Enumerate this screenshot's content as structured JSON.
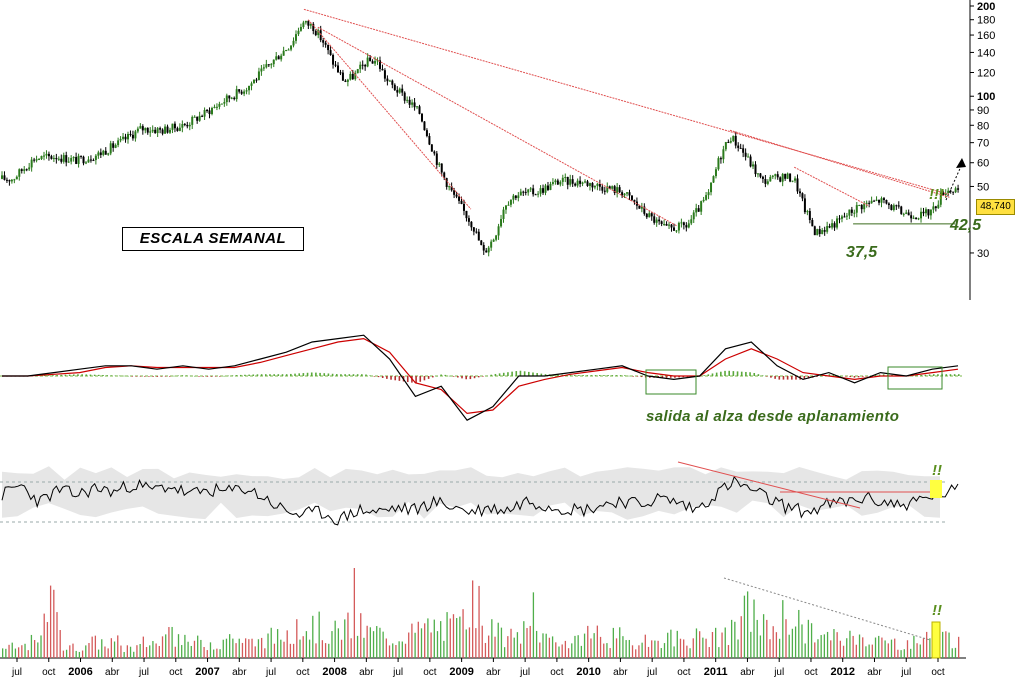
{
  "annotations": {
    "scale_label": "ESCALA SEMANAL",
    "resistance_level": "42,5",
    "support_level": "37,5",
    "macd_comment": "salida al alza desde aplanamiento",
    "alert_price": "!!!",
    "alert_rsi": "!!",
    "alert_volume": "!!"
  },
  "colors": {
    "price_up": "#2a7a1c",
    "price_down": "#000000",
    "macd_line": "#000000",
    "signal_line": "#cc0000",
    "histogram_up": "#5aa83a",
    "histogram_down": "#b33030",
    "trendline": "#e05050",
    "level_text": "#3a6b1c",
    "highlight": "#ffff40"
  },
  "chart_data": [
    {
      "type": "line",
      "panel": "price",
      "title": "",
      "yscale": "log",
      "ylim": [
        24,
        200
      ],
      "y_ticks": [
        "200",
        "180",
        "160",
        "140",
        "120",
        "100",
        "90",
        "80",
        "70",
        "60",
        "50",
        "30"
      ],
      "last_price": "48,740",
      "x_labels": [
        "jul",
        "oct",
        "2006",
        "abr",
        "jul",
        "oct",
        "2007",
        "abr",
        "jul",
        "oct",
        "2008",
        "abr",
        "jul",
        "oct",
        "2009",
        "abr",
        "jul",
        "oct",
        "2010",
        "abr",
        "jul",
        "oct",
        "2011",
        "abr",
        "jul",
        "oct",
        "2012",
        "abr",
        "jul",
        "oct"
      ],
      "series": [
        {
          "x": [
            "2005-07",
            "2005-09",
            "2005-11",
            "2006-01",
            "2006-03",
            "2006-05",
            "2006-07",
            "2006-09",
            "2006-11",
            "2007-01",
            "2007-03",
            "2007-05",
            "2007-07",
            "2007-09",
            "2007-10",
            "2007-11",
            "2007-12",
            "2008-01",
            "2008-02",
            "2008-03",
            "2008-04",
            "2008-05",
            "2008-06",
            "2008-07",
            "2008-08",
            "2008-09",
            "2008-10",
            "2008-11",
            "2008-12",
            "2009-01",
            "2009-02",
            "2009-03",
            "2009-04",
            "2009-05",
            "2009-06",
            "2009-08",
            "2009-10",
            "2009-12",
            "2010-02",
            "2010-04",
            "2010-06",
            "2010-08",
            "2010-10",
            "2010-12",
            "2011-01",
            "2011-02",
            "2011-03",
            "2011-05",
            "2011-07",
            "2011-08",
            "2011-09",
            "2011-10",
            "2011-12",
            "2012-02",
            "2012-04",
            "2012-06",
            "2012-08",
            "2012-09",
            "2012-10"
          ],
          "values": [
            53,
            62,
            63,
            61,
            64,
            70,
            78,
            77,
            80,
            88,
            98,
            108,
            128,
            150,
            176,
            172,
            152,
            128,
            112,
            118,
            130,
            132,
            112,
            104,
            96,
            88,
            70,
            56,
            48,
            42,
            37,
            30,
            34,
            44,
            47,
            48,
            52,
            52,
            50,
            48,
            41,
            36,
            37,
            47,
            62,
            74,
            67,
            52,
            54,
            53,
            42,
            35,
            38,
            43,
            45,
            41,
            40,
            42,
            48.74
          ]
        }
      ]
    },
    {
      "type": "line",
      "panel": "macd",
      "series": [
        {
          "name": "",
          "values": [
            0,
            0,
            0.1,
            0.2,
            0.3,
            0.3,
            0.2,
            0.3,
            0.2,
            0.3,
            0.5,
            0.7,
            1.0,
            1.1,
            1.2,
            0.5,
            -0.6,
            -0.3,
            -1.3,
            -0.9,
            0,
            0,
            0.1,
            0.2,
            0.3,
            0.0,
            -0.1,
            0.0,
            0.8,
            1.0,
            0.3,
            -0.1,
            0.1,
            -0.2,
            0.1,
            0.0,
            0.2,
            0.3
          ]
        },
        {
          "name": "",
          "values": [
            0,
            0,
            0.05,
            0.1,
            0.25,
            0.3,
            0.25,
            0.25,
            0.25,
            0.25,
            0.4,
            0.6,
            0.8,
            1.0,
            1.1,
            0.7,
            -0.2,
            -0.4,
            -1.1,
            -1.0,
            -0.3,
            -0.1,
            0.05,
            0.15,
            0.25,
            0.1,
            0.0,
            0.0,
            0.5,
            0.8,
            0.5,
            0.1,
            0.0,
            -0.1,
            0.0,
            0.0,
            0.1,
            0.2
          ]
        }
      ]
    },
    {
      "type": "line",
      "panel": "oscillator",
      "series": [
        {
          "name": "",
          "values": [
            55,
            65,
            48,
            60,
            55,
            62,
            58,
            66,
            60,
            64,
            55,
            60,
            58,
            62,
            52,
            40,
            35,
            38,
            30,
            40,
            38,
            42,
            40,
            48,
            44,
            38,
            42,
            40,
            50,
            45,
            42,
            40,
            45,
            50,
            45,
            52,
            48,
            40,
            55,
            68,
            60,
            50,
            42,
            38,
            45,
            48,
            52,
            48,
            45,
            50,
            56,
            60
          ]
        }
      ]
    },
    {
      "type": "bar",
      "panel": "volume",
      "series": [
        {
          "name": "",
          "values": [
            2,
            3,
            10,
            2,
            3,
            3,
            2,
            3,
            4,
            3,
            3,
            4,
            3,
            4,
            5,
            6,
            5,
            6,
            5,
            4,
            5,
            6,
            6,
            10,
            5,
            4,
            5,
            4,
            3,
            5,
            4,
            3,
            3,
            4,
            4,
            4,
            5,
            9,
            6,
            8,
            5,
            4,
            4,
            4,
            3,
            3,
            4,
            4,
            6
          ]
        }
      ]
    }
  ]
}
